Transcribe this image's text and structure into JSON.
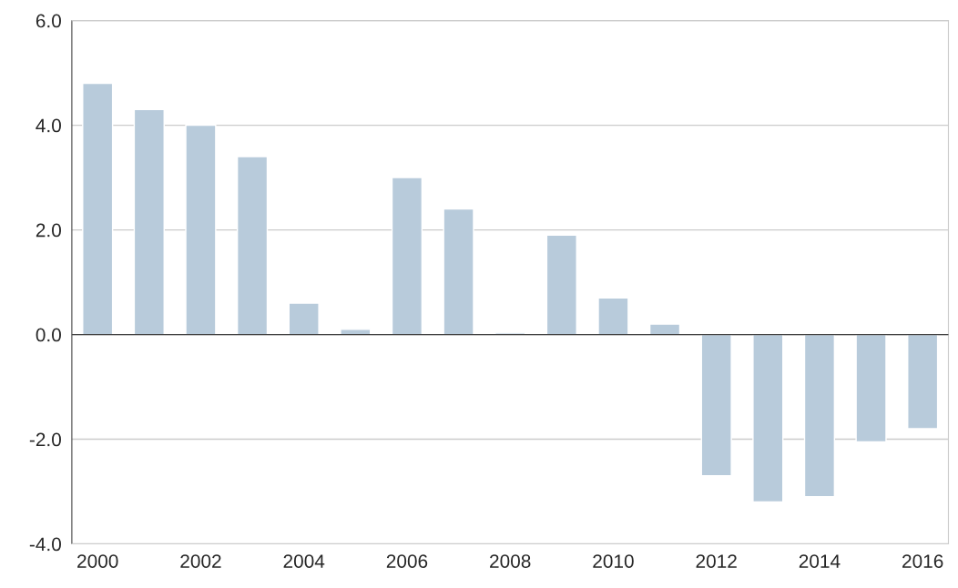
{
  "chart_data": {
    "type": "bar",
    "categories": [
      "2000",
      null,
      "2002",
      null,
      "2004",
      null,
      "2006",
      null,
      "2008",
      null,
      "2010",
      null,
      "2012",
      null,
      "2014",
      null,
      "2016"
    ],
    "values": [
      4.8,
      4.3,
      4.0,
      3.4,
      0.6,
      0.1,
      3.0,
      2.4,
      0.03,
      1.9,
      0.7,
      0.2,
      -2.7,
      -3.2,
      -3.1,
      -2.05,
      -1.8
    ],
    "color": "#b8cbdb",
    "ylim": [
      -4,
      6
    ],
    "yticks": [
      {
        "value": -4,
        "label": "-4.0"
      },
      {
        "value": -2,
        "label": "-2.0"
      },
      {
        "value": 0,
        "label": "0.0"
      },
      {
        "value": 2,
        "label": "2.0"
      },
      {
        "value": 4,
        "label": "4.0"
      },
      {
        "value": 6,
        "label": "6.0"
      }
    ],
    "grid": "y",
    "legend": false
  }
}
